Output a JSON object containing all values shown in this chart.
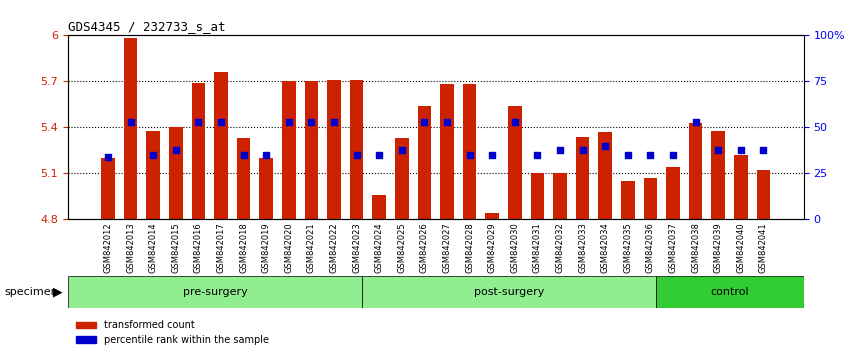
{
  "title": "GDS4345 / 232733_s_at",
  "samples": [
    "GSM842012",
    "GSM842013",
    "GSM842014",
    "GSM842015",
    "GSM842016",
    "GSM842017",
    "GSM842018",
    "GSM842019",
    "GSM842020",
    "GSM842021",
    "GSM842022",
    "GSM842023",
    "GSM842024",
    "GSM842025",
    "GSM842026",
    "GSM842027",
    "GSM842028",
    "GSM842029",
    "GSM842030",
    "GSM842031",
    "GSM842032",
    "GSM842033",
    "GSM842034",
    "GSM842035",
    "GSM842036",
    "GSM842037",
    "GSM842038",
    "GSM842039",
    "GSM842040",
    "GSM842041"
  ],
  "bar_values": [
    5.2,
    5.98,
    5.38,
    5.4,
    5.69,
    5.76,
    5.33,
    5.2,
    5.7,
    5.7,
    5.71,
    5.71,
    4.96,
    5.33,
    5.54,
    5.68,
    5.68,
    4.84,
    5.54,
    5.1,
    5.1,
    5.34,
    5.37,
    5.05,
    5.07,
    5.14,
    5.43,
    5.38,
    5.22,
    5.12
  ],
  "percentile_values": [
    34,
    53,
    35,
    38,
    53,
    53,
    35,
    35,
    53,
    53,
    53,
    35,
    35,
    38,
    53,
    53,
    35,
    35,
    53,
    35,
    38,
    38,
    40,
    35,
    35,
    35,
    53,
    38,
    38,
    38
  ],
  "groups": {
    "pre-surgery": [
      0,
      11
    ],
    "post-surgery": [
      12,
      23
    ],
    "control": [
      24,
      29
    ]
  },
  "group_colors": {
    "pre-surgery": "#90EE90",
    "post-surgery": "#90EE90",
    "control": "#32CD32"
  },
  "ylim": [
    4.8,
    6.0
  ],
  "yticks": [
    4.8,
    5.1,
    5.4,
    5.7,
    6.0
  ],
  "ytick_labels": [
    "4.8",
    "5.1",
    "5.4",
    "5.7",
    "6"
  ],
  "right_yticks": [
    0,
    25,
    50,
    75,
    100
  ],
  "right_ytick_labels": [
    "0",
    "25",
    "50",
    "75",
    "100%"
  ],
  "bar_color": "#CC2200",
  "dot_color": "#0000CC",
  "grid_color": "#000000",
  "bg_color": "#ffffff",
  "legend_labels": [
    "transformed count",
    "percentile rank within the sample"
  ]
}
